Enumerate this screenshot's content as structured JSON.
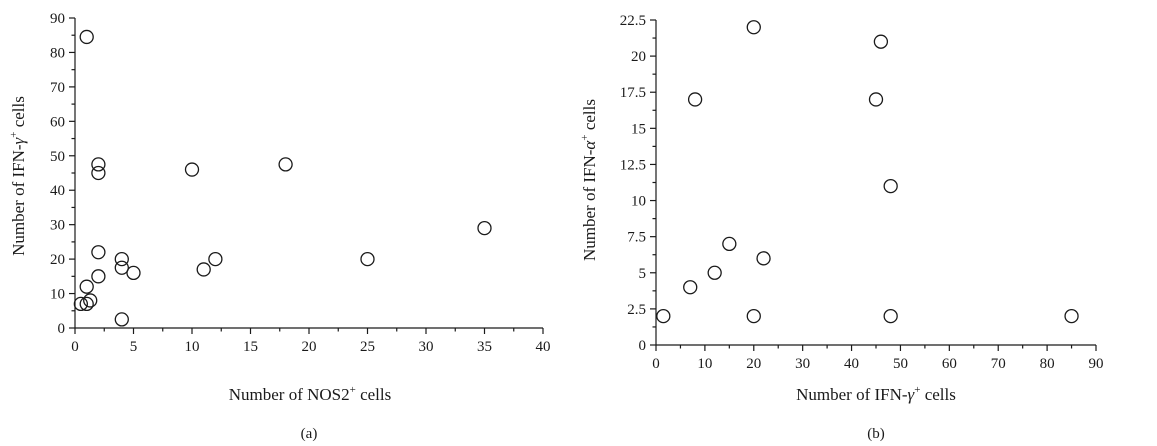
{
  "chart_data": [
    {
      "type": "scatter",
      "panel_label": "(a)",
      "xlabel_prefix": "Number of NOS2",
      "xlabel_sup": "+",
      "xlabel_suffix": " cells",
      "ylabel_prefix": "Number of IFN-",
      "ylabel_greek": "γ",
      "ylabel_sup": "+",
      "ylabel_suffix": " cells",
      "xlim": [
        0,
        40
      ],
      "ylim": [
        0,
        90
      ],
      "xticks": [
        0,
        5,
        10,
        15,
        20,
        25,
        30,
        35,
        40
      ],
      "yticks": [
        0,
        10,
        20,
        30,
        40,
        50,
        60,
        70,
        80,
        90
      ],
      "x_minor_step": 2.5,
      "y_minor_step": 5,
      "points": [
        [
          1,
          84.5
        ],
        [
          0.5,
          7
        ],
        [
          1,
          7
        ],
        [
          1.3,
          8
        ],
        [
          1,
          12
        ],
        [
          2,
          47.5
        ],
        [
          2,
          45
        ],
        [
          2,
          22
        ],
        [
          2,
          15
        ],
        [
          4,
          20
        ],
        [
          4,
          17.5
        ],
        [
          4,
          2.5
        ],
        [
          5,
          16
        ],
        [
          10,
          46
        ],
        [
          11,
          17
        ],
        [
          12,
          20
        ],
        [
          18,
          47.5
        ],
        [
          25,
          20
        ],
        [
          35,
          29
        ]
      ]
    },
    {
      "type": "scatter",
      "panel_label": "(b)",
      "xlabel_prefix": "Number of IFN-",
      "xlabel_greek": "γ",
      "xlabel_sup": "+",
      "xlabel_suffix": " cells",
      "ylabel_prefix": "Number of IFN-",
      "ylabel_greek": "α",
      "ylabel_sup": "+",
      "ylabel_suffix": " cells",
      "xlim": [
        0,
        90
      ],
      "ylim": [
        0,
        22.5
      ],
      "xticks": [
        0,
        10,
        20,
        30,
        40,
        50,
        60,
        70,
        80,
        90
      ],
      "yticks": [
        0,
        2.5,
        5,
        7.5,
        10,
        12.5,
        15,
        17.5,
        20,
        22.5
      ],
      "xtick_labels": [
        "0",
        "10",
        "20",
        "30",
        "40",
        "50",
        "60",
        "70",
        "80",
        "90"
      ],
      "ytick_labels": [
        "0",
        "2.5",
        "5",
        "7.5",
        "10",
        "12.5",
        "15",
        "17.5",
        "20",
        "22.5"
      ],
      "x_minor_step": 5,
      "y_minor_step": 1.25,
      "points": [
        [
          1.5,
          2
        ],
        [
          7,
          4
        ],
        [
          8,
          17
        ],
        [
          12,
          5
        ],
        [
          15,
          7
        ],
        [
          20,
          22
        ],
        [
          20,
          2
        ],
        [
          22,
          6
        ],
        [
          45,
          17
        ],
        [
          46,
          21
        ],
        [
          48,
          11
        ],
        [
          48,
          2
        ],
        [
          85,
          2
        ]
      ]
    }
  ]
}
